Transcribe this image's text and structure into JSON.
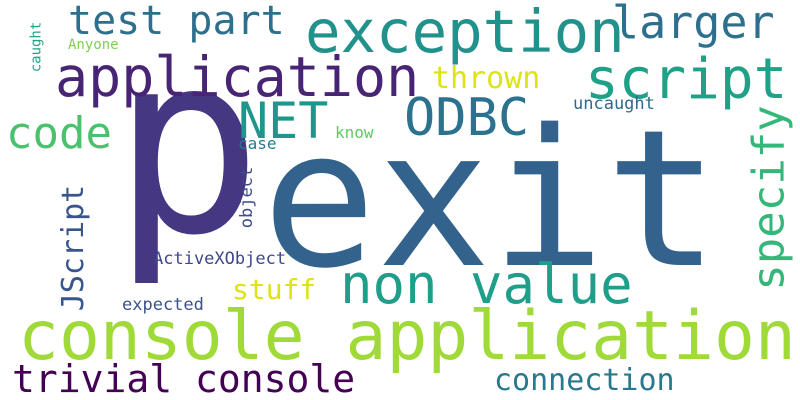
{
  "words": {
    "p": "p",
    "exit": "exit",
    "console_application": "console application",
    "exception": "exception",
    "application": "application",
    "script": "script",
    "larger": "larger",
    "test_part": "test part",
    "non_value": "non value",
    "trivial_console": "trivial console",
    "ODBC": "ODBC",
    "NET": "NET",
    "code": "code",
    "specify": "specify",
    "connection": "connection",
    "JScript": "JScript",
    "thrown": "thrown",
    "stuff": "stuff",
    "uncaught": "uncaught",
    "ActiveXObject": "ActiveXObject",
    "expected": "expected",
    "object": "object",
    "case": "case",
    "know": "know",
    "Anyone": "Anyone",
    "caught": "caught"
  },
  "colors": {
    "p": "#453781",
    "exit": "#33638d",
    "console_application": "#a0da39",
    "exception": "#21918c",
    "application": "#482475",
    "script": "#1fa187",
    "larger": "#2d708e",
    "test_part": "#2d708e",
    "non_value": "#1f9e89",
    "trivial_console": "#440154",
    "ODBC": "#2c728e",
    "NET": "#1f968b",
    "code": "#4ac16d",
    "specify": "#35b779",
    "connection": "#2a788e",
    "JScript": "#39568c",
    "thrown": "#dde318",
    "stuff": "#dde318",
    "uncaught": "#31688e",
    "ActiveXObject": "#3f4788",
    "expected": "#3b528b",
    "object": "#3e4a89",
    "case": "#2a788e",
    "know": "#5ec962",
    "Anyone": "#7ad151",
    "caught": "#20a486"
  }
}
